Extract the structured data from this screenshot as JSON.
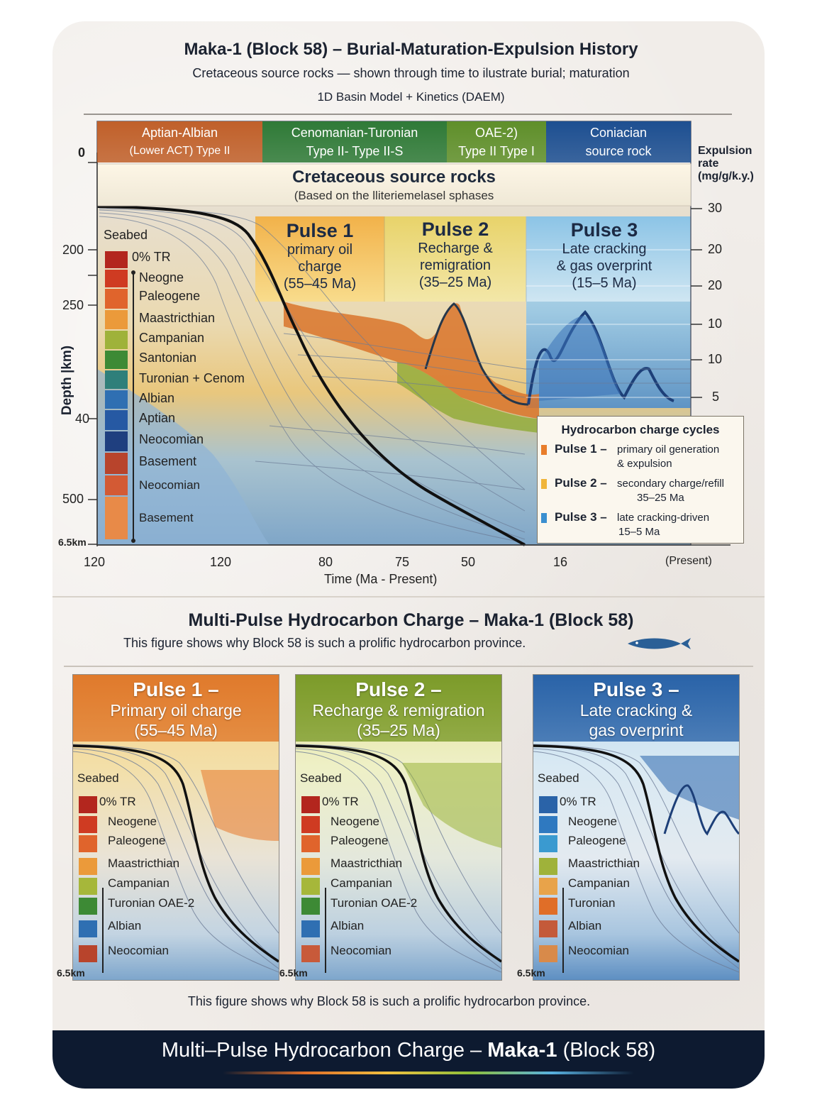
{
  "header": {
    "title": "Maka-1 (Block 58) – Burial-Maturation-Expulsion History",
    "subtitle": "Cretaceous source rocks — shown through time to ilustrate burial; maturation",
    "method": "1D Basin Model + Kinetics (DAEM)"
  },
  "strat_header": [
    {
      "line1": "Aptian-Albian",
      "line2": "(Lower ACT) Type II",
      "color": "#c0602a"
    },
    {
      "line1": "Cenomanian-Turonian",
      "line2": "Type II- Type II-S",
      "color": "#2f7a37"
    },
    {
      "line1": "OAE-2)",
      "line2": "Type II Type I",
      "color": "#5f8f2a"
    },
    {
      "line1": "Coniacian",
      "line2": "source rock",
      "color": "#1d4f91"
    }
  ],
  "band": {
    "title": "Cretaceous source rocks",
    "note": "(Based on the lliteriemelasel sphases"
  },
  "left_axis": {
    "label": "Depth |km)",
    "zero": "0",
    "ticks": [
      "200",
      "250",
      "40",
      "500",
      "6.5km"
    ]
  },
  "right_axis": {
    "label": "Expulsion rate (mg/g/k.y.)",
    "ticks": [
      "30",
      "20",
      "20",
      "10",
      "10",
      "5"
    ]
  },
  "x_axis": {
    "label": "Time (Ma - Present)",
    "ticks": [
      "120",
      "120",
      "80",
      "75",
      "50",
      "16",
      "(Present)"
    ]
  },
  "pulses": [
    {
      "title": "Pulse 1",
      "line1": "primary oil",
      "line2": "charge",
      "line3": "(55–45 Ma)"
    },
    {
      "title": "Pulse 2",
      "line1": "Recharge &",
      "line2": "remigration",
      "line3": "(35–25 Ma)"
    },
    {
      "title": "Pulse 3",
      "line1": "Late cracking",
      "line2": "& gas overprint",
      "line3": "(15–5 Ma)"
    }
  ],
  "strat_legend": {
    "seabed": "Seabed",
    "items": [
      {
        "label": "0% TR",
        "color": "#b3261e"
      },
      {
        "label": "Neogne",
        "color": "#cf3b22"
      },
      {
        "label": "Paleogene",
        "color": "#e0642c"
      },
      {
        "label": "Maastricthian",
        "color": "#eb9a3a"
      },
      {
        "label": "Campanian",
        "color": "#9fb23a"
      },
      {
        "label": "Santonian",
        "color": "#3d8a35"
      },
      {
        "label": "Turonian + Cenom",
        "color": "#2f7f7a"
      },
      {
        "label": "Albian",
        "color": "#2f6fb2"
      },
      {
        "label": "Aptian",
        "color": "#2659a3"
      },
      {
        "label": "Neocomian",
        "color": "#1f3f7f"
      },
      {
        "label": "Basement",
        "color": "#b8442c"
      },
      {
        "label": "Neocomian",
        "color": "#d35a34"
      },
      {
        "label": "Basement",
        "color": "#e88a48"
      }
    ]
  },
  "charge_legend": {
    "title": "Hydrocarbon charge cycles",
    "items": [
      {
        "name": "Pulse 1 –",
        "desc1": "primary oil generation",
        "desc2": "& expulsion",
        "color": "#e87d2a"
      },
      {
        "name": "Pulse 2 –",
        "desc1": "secondary charge/refill",
        "desc2": "35–25 Ma",
        "color": "#f0b53a"
      },
      {
        "name": "Pulse 3 –",
        "desc1": "late cracking-driven",
        "desc2": "15–5 Ma",
        "color": "#3a8fd0"
      }
    ]
  },
  "section2": {
    "title": "Multi-Pulse Hydrocarbon Charge – Maka-1 (Block 58)",
    "caption": "This figure shows why Block 58 is such a prolific hydrocarbon province."
  },
  "panels": [
    {
      "title": "Pulse 1 –",
      "line1": "Primary oil charge",
      "line2": "(55–45 Ma)",
      "head": "#e07a2c",
      "legend": [
        "0% TR",
        "Neogene",
        "Paleogene",
        "Maastricthian",
        "Campanian",
        "Turonian OAE-2",
        "Albian",
        "Neocomian"
      ]
    },
    {
      "title": "Pulse 2 –",
      "line1": "Recharge & remigration",
      "line2": "(35–25 Ma)",
      "head": "#7c9b2a",
      "legend": [
        "0% TR",
        "Neogene",
        "Paleogene",
        "Maastricthian",
        "Campanian",
        "Turonian OAE-2",
        "Albian",
        "Neocomian"
      ]
    },
    {
      "title": "Pulse 3 –",
      "line1": "Late cracking &",
      "line2": "gas overprint",
      "head": "#2a63a8",
      "legend": [
        "0% TR",
        "Neogene",
        "Paleogene",
        "Maastricthian",
        "Campanian",
        "Turonian",
        "Albian",
        "Neocomian"
      ]
    }
  ],
  "panel_common": {
    "seabed": "Seabed",
    "depth": "6.5km"
  },
  "bottom_caption": "This figure shows why Block 58 is such a prolific hydrocarbon province.",
  "footer": {
    "part1": "Multi–Pulse Hydrocarbon Charge – ",
    "part2": "Maka-1",
    "part3": " (Block 58)"
  }
}
